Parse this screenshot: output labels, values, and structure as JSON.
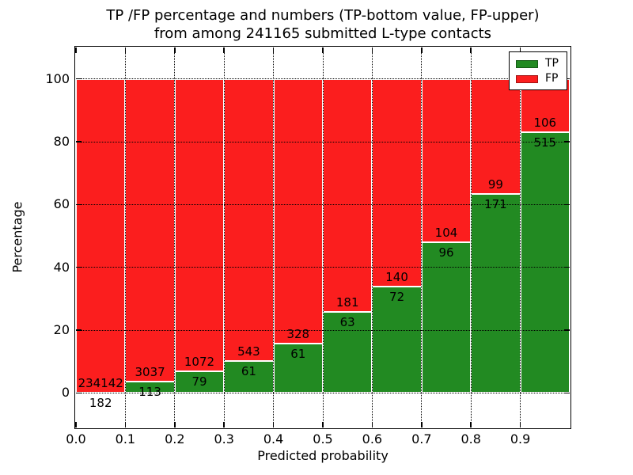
{
  "figure": {
    "title_line1": "TP /FP percentage and numbers (TP-bottom value, FP-upper)",
    "title_line2": "from among 241165 submitted L-type contacts",
    "xlabel": "Predicted probability",
    "ylabel": "Percentage"
  },
  "legend": {
    "position": "upper right",
    "entries": [
      {
        "label": "TP",
        "color": "#228a22"
      },
      {
        "label": "FP",
        "color": "#fb1e1e"
      }
    ]
  },
  "colors": {
    "tp_green": "#228a22",
    "fp_red": "#fb1e1e",
    "axis": "#000000",
    "background": "#ffffff"
  },
  "chart_data": {
    "type": "bar",
    "stacked": true,
    "normalized": "each bin stacked to 100%",
    "title": "TP /FP percentage and numbers (TP-bottom value, FP-upper) from among 241165 submitted L-type contacts",
    "xlabel": "Predicted probability",
    "ylabel": "Percentage",
    "total_submitted": 241165,
    "bin_edges": [
      0.0,
      0.1,
      0.2,
      0.3,
      0.4,
      0.5,
      0.6,
      0.7,
      0.8,
      0.9,
      1.0
    ],
    "x_tick_labels": [
      "0.0",
      "0.1",
      "0.2",
      "0.3",
      "0.4",
      "0.5",
      "0.6",
      "0.7",
      "0.8",
      "0.9"
    ],
    "y_ticks": [
      0,
      20,
      40,
      60,
      80,
      100
    ],
    "xlim": [
      0.0,
      1.0
    ],
    "ylim": [
      -11,
      110
    ],
    "grid": {
      "style": "dotted",
      "color": "#000000",
      "both_axes": true
    },
    "legend_position": "upper right",
    "series": [
      {
        "name": "TP",
        "color": "#228a22",
        "values": [
          182,
          113,
          79,
          61,
          61,
          63,
          72,
          96,
          171,
          515
        ]
      },
      {
        "name": "FP",
        "color": "#fb1e1e",
        "values": [
          234142,
          3037,
          1072,
          543,
          328,
          181,
          140,
          104,
          99,
          106
        ]
      }
    ],
    "tp_percent_by_bin": [
      0.08,
      3.59,
      6.86,
      10.1,
      15.68,
      25.82,
      33.96,
      48.0,
      63.33,
      82.93
    ]
  }
}
